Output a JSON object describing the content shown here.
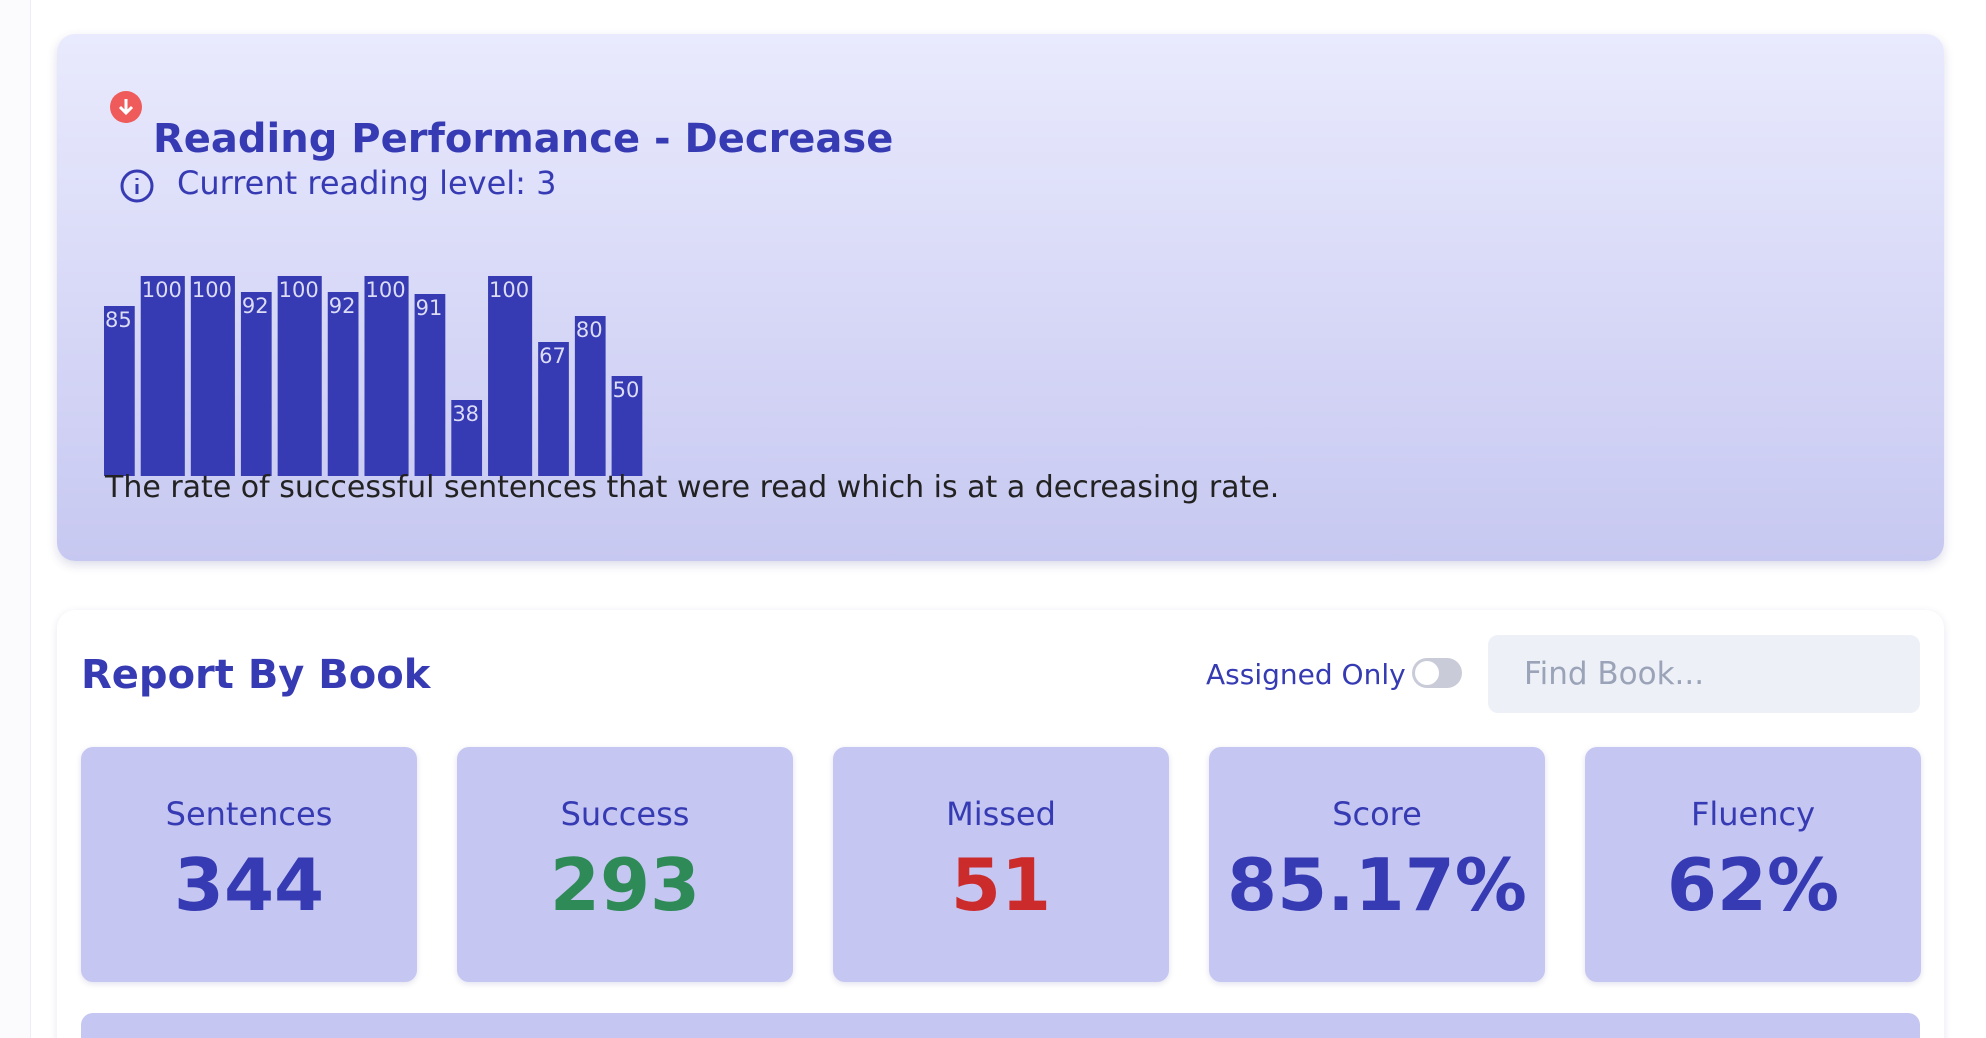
{
  "performance": {
    "title": "Reading Performance - Decrease",
    "level": "Current reading level: 3",
    "chart": {
      "type": "bar",
      "values": [
        85,
        100,
        100,
        92,
        100,
        92,
        100,
        91,
        38,
        100,
        67,
        80,
        50
      ],
      "ylim": [
        0,
        100
      ],
      "color": "#363bb3"
    },
    "description": "The rate of successful sentences that were read which is at a decreasing rate."
  },
  "report": {
    "title": "Report By Book",
    "toggle_label": "Assigned Only",
    "search_placeholder": "Find Book...",
    "stats": [
      {
        "label": "Sentences",
        "value": "344",
        "color": "#363bb3"
      },
      {
        "label": "Success",
        "value": "293",
        "color": "#2e8a57"
      },
      {
        "label": "Missed",
        "value": "51",
        "color": "#cc2b2b"
      },
      {
        "label": "Score",
        "value": "85.17%",
        "color": "#363bb3"
      },
      {
        "label": "Fluency",
        "value": "62%",
        "color": "#363bb3"
      }
    ]
  }
}
